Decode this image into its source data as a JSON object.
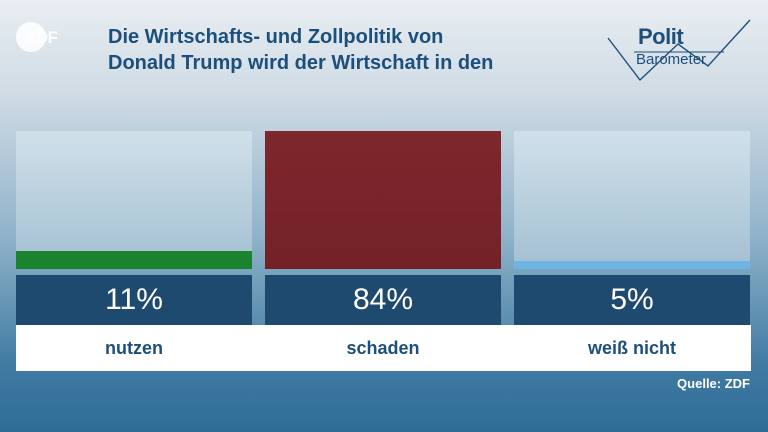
{
  "brand": {
    "zdf_logo": "ZDF",
    "polit_line1": "Polit",
    "polit_line2": "Barometer"
  },
  "header": {
    "title_line1": "Die Wirtschafts- und Zollpolitik von",
    "title_line2": "Donald Trump wird der Wirtschaft in den"
  },
  "chart_data": {
    "type": "bar",
    "title": "Die Wirtschafts- und Zollpolitik von Donald Trump wird der Wirtschaft in den",
    "categories": [
      "nutzen",
      "schaden",
      "weiß nicht"
    ],
    "values": [
      11,
      84,
      5
    ],
    "value_labels": [
      "11%",
      "84%",
      "5%"
    ],
    "colors": [
      "#0a7d14",
      "#730a0e",
      "#6ab7ea"
    ],
    "ylim": [
      0,
      84
    ],
    "grid": false,
    "legend": "none"
  },
  "footer": {
    "source": "Quelle: ZDF"
  }
}
